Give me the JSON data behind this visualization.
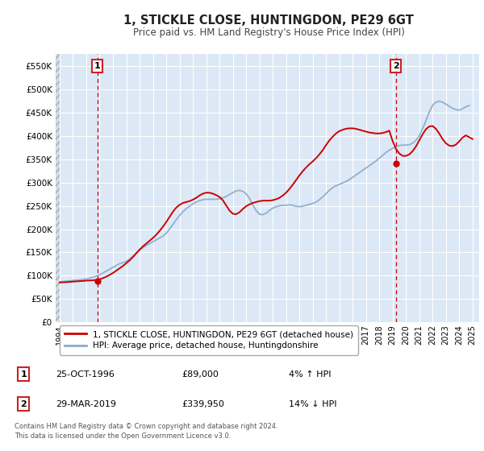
{
  "title": "1, STICKLE CLOSE, HUNTINGDON, PE29 6GT",
  "subtitle": "Price paid vs. HM Land Registry's House Price Index (HPI)",
  "background_color": "#ffffff",
  "plot_bg_color": "#dce8f5",
  "hatch_color": "#c8d8e8",
  "grid_color": "#ffffff",
  "xlim": [
    1993.7,
    2025.5
  ],
  "ylim": [
    0,
    575000
  ],
  "yticks": [
    0,
    50000,
    100000,
    150000,
    200000,
    250000,
    300000,
    350000,
    400000,
    450000,
    500000,
    550000
  ],
  "ytick_labels": [
    "£0",
    "£50K",
    "£100K",
    "£150K",
    "£200K",
    "£250K",
    "£300K",
    "£350K",
    "£400K",
    "£450K",
    "£500K",
    "£550K"
  ],
  "xticks": [
    1994,
    1995,
    1996,
    1997,
    1998,
    1999,
    2000,
    2001,
    2002,
    2003,
    2004,
    2005,
    2006,
    2007,
    2008,
    2009,
    2010,
    2011,
    2012,
    2013,
    2014,
    2015,
    2016,
    2017,
    2018,
    2019,
    2020,
    2021,
    2022,
    2023,
    2024,
    2025
  ],
  "red_line_color": "#cc0000",
  "blue_line_color": "#88aacc",
  "vline_color": "#cc0000",
  "marker_color": "#cc0000",
  "annotation_box_color": "#cc2222",
  "sale1_x": 1996.82,
  "sale1_y": 89000,
  "sale1_label": "1",
  "sale2_x": 2019.24,
  "sale2_y": 339950,
  "sale2_label": "2",
  "legend_label_red": "1, STICKLE CLOSE, HUNTINGDON, PE29 6GT (detached house)",
  "legend_label_blue": "HPI: Average price, detached house, Huntingdonshire",
  "table_row1": [
    "1",
    "25-OCT-1996",
    "£89,000",
    "4% ↑ HPI"
  ],
  "table_row2": [
    "2",
    "29-MAR-2019",
    "£339,950",
    "14% ↓ HPI"
  ],
  "footnote": "Contains HM Land Registry data © Crown copyright and database right 2024.\nThis data is licensed under the Open Government Licence v3.0.",
  "hpi_data_x": [
    1994.0,
    1994.25,
    1994.5,
    1994.75,
    1995.0,
    1995.25,
    1995.5,
    1995.75,
    1996.0,
    1996.25,
    1996.5,
    1996.75,
    1997.0,
    1997.25,
    1997.5,
    1997.75,
    1998.0,
    1998.25,
    1998.5,
    1998.75,
    1999.0,
    1999.25,
    1999.5,
    1999.75,
    2000.0,
    2000.25,
    2000.5,
    2000.75,
    2001.0,
    2001.25,
    2001.5,
    2001.75,
    2002.0,
    2002.25,
    2002.5,
    2002.75,
    2003.0,
    2003.25,
    2003.5,
    2003.75,
    2004.0,
    2004.25,
    2004.5,
    2004.75,
    2005.0,
    2005.25,
    2005.5,
    2005.75,
    2006.0,
    2006.25,
    2006.5,
    2006.75,
    2007.0,
    2007.25,
    2007.5,
    2007.75,
    2008.0,
    2008.25,
    2008.5,
    2008.75,
    2009.0,
    2009.25,
    2009.5,
    2009.75,
    2010.0,
    2010.25,
    2010.5,
    2010.75,
    2011.0,
    2011.25,
    2011.5,
    2011.75,
    2012.0,
    2012.25,
    2012.5,
    2012.75,
    2013.0,
    2013.25,
    2013.5,
    2013.75,
    2014.0,
    2014.25,
    2014.5,
    2014.75,
    2015.0,
    2015.25,
    2015.5,
    2015.75,
    2016.0,
    2016.25,
    2016.5,
    2016.75,
    2017.0,
    2017.25,
    2017.5,
    2017.75,
    2018.0,
    2018.25,
    2018.5,
    2018.75,
    2019.0,
    2019.25,
    2019.5,
    2019.75,
    2020.0,
    2020.25,
    2020.5,
    2020.75,
    2021.0,
    2021.25,
    2021.5,
    2021.75,
    2022.0,
    2022.25,
    2022.5,
    2022.75,
    2023.0,
    2023.25,
    2023.5,
    2023.75,
    2024.0,
    2024.25,
    2024.5,
    2024.75
  ],
  "hpi_data_y": [
    87000,
    88000,
    88500,
    89000,
    90000,
    90500,
    91000,
    92000,
    93000,
    95000,
    97000,
    99000,
    102000,
    106000,
    110000,
    114000,
    118000,
    122000,
    126000,
    128000,
    131000,
    136000,
    142000,
    149000,
    155000,
    160000,
    165000,
    169000,
    173000,
    177000,
    181000,
    185000,
    191000,
    200000,
    210000,
    220000,
    229000,
    237000,
    244000,
    249000,
    254000,
    258000,
    261000,
    263000,
    264000,
    264000,
    264000,
    264000,
    265000,
    267000,
    270000,
    274000,
    278000,
    282000,
    283000,
    281000,
    276000,
    266000,
    252000,
    240000,
    232000,
    231000,
    234000,
    240000,
    245000,
    248000,
    250000,
    251000,
    251000,
    252000,
    251000,
    249000,
    248000,
    249000,
    251000,
    253000,
    255000,
    258000,
    263000,
    269000,
    276000,
    283000,
    289000,
    293000,
    296000,
    299000,
    302000,
    306000,
    311000,
    316000,
    321000,
    326000,
    331000,
    336000,
    341000,
    346000,
    352000,
    358000,
    364000,
    369000,
    373000,
    377000,
    379000,
    380000,
    380000,
    381000,
    384000,
    390000,
    400000,
    415000,
    432000,
    451000,
    465000,
    472000,
    474000,
    472000,
    468000,
    463000,
    459000,
    456000,
    455000,
    458000,
    462000,
    465000
  ],
  "red_data_x": [
    1994.0,
    1994.25,
    1994.5,
    1994.75,
    1995.0,
    1995.25,
    1995.5,
    1995.75,
    1996.0,
    1996.25,
    1996.5,
    1996.75,
    1997.0,
    1997.25,
    1997.5,
    1997.75,
    1998.0,
    1998.25,
    1998.5,
    1998.75,
    1999.0,
    1999.25,
    1999.5,
    1999.75,
    2000.0,
    2000.25,
    2000.5,
    2000.75,
    2001.0,
    2001.25,
    2001.5,
    2001.75,
    2002.0,
    2002.25,
    2002.5,
    2002.75,
    2003.0,
    2003.25,
    2003.5,
    2003.75,
    2004.0,
    2004.25,
    2004.5,
    2004.75,
    2005.0,
    2005.25,
    2005.5,
    2005.75,
    2006.0,
    2006.25,
    2006.5,
    2006.75,
    2007.0,
    2007.25,
    2007.5,
    2007.75,
    2008.0,
    2008.25,
    2008.5,
    2008.75,
    2009.0,
    2009.25,
    2009.5,
    2009.75,
    2010.0,
    2010.25,
    2010.5,
    2010.75,
    2011.0,
    2011.25,
    2011.5,
    2011.75,
    2012.0,
    2012.25,
    2012.5,
    2012.75,
    2013.0,
    2013.25,
    2013.5,
    2013.75,
    2014.0,
    2014.25,
    2014.5,
    2014.75,
    2015.0,
    2015.25,
    2015.5,
    2015.75,
    2016.0,
    2016.25,
    2016.5,
    2016.75,
    2017.0,
    2017.25,
    2017.5,
    2017.75,
    2018.0,
    2018.25,
    2018.5,
    2018.75,
    2019.0,
    2019.25,
    2019.5,
    2019.75,
    2020.0,
    2020.25,
    2020.5,
    2020.75,
    2021.0,
    2021.25,
    2021.5,
    2021.75,
    2022.0,
    2022.25,
    2022.5,
    2022.75,
    2023.0,
    2023.25,
    2023.5,
    2023.75,
    2024.0,
    2024.25,
    2024.5,
    2024.75,
    2025.0
  ],
  "red_data_y": [
    85500,
    86000,
    86500,
    87000,
    87500,
    88000,
    88500,
    89000,
    89500,
    90000,
    90500,
    91000,
    92500,
    95000,
    98000,
    102000,
    106000,
    111000,
    116000,
    121000,
    127000,
    133000,
    140000,
    148000,
    156000,
    163000,
    169000,
    175000,
    181000,
    188000,
    196000,
    205000,
    215000,
    226000,
    237000,
    246000,
    252000,
    256000,
    258000,
    260000,
    263000,
    267000,
    272000,
    276000,
    278000,
    278000,
    276000,
    273000,
    269000,
    262000,
    251000,
    240000,
    233000,
    232000,
    236000,
    243000,
    249000,
    253000,
    256000,
    258000,
    260000,
    261000,
    261000,
    261000,
    262000,
    264000,
    267000,
    272000,
    278000,
    286000,
    295000,
    305000,
    315000,
    324000,
    332000,
    339000,
    345000,
    352000,
    360000,
    369000,
    380000,
    390000,
    398000,
    405000,
    410000,
    413000,
    415000,
    416000,
    416000,
    415000,
    413000,
    411000,
    409000,
    407000,
    406000,
    405000,
    405000,
    406000,
    408000,
    411000,
    389000,
    372000,
    362000,
    357000,
    357000,
    360000,
    367000,
    377000,
    390000,
    403000,
    414000,
    420000,
    421000,
    415000,
    405000,
    393000,
    384000,
    379000,
    378000,
    381000,
    388000,
    396000,
    401000,
    397000,
    393000
  ]
}
